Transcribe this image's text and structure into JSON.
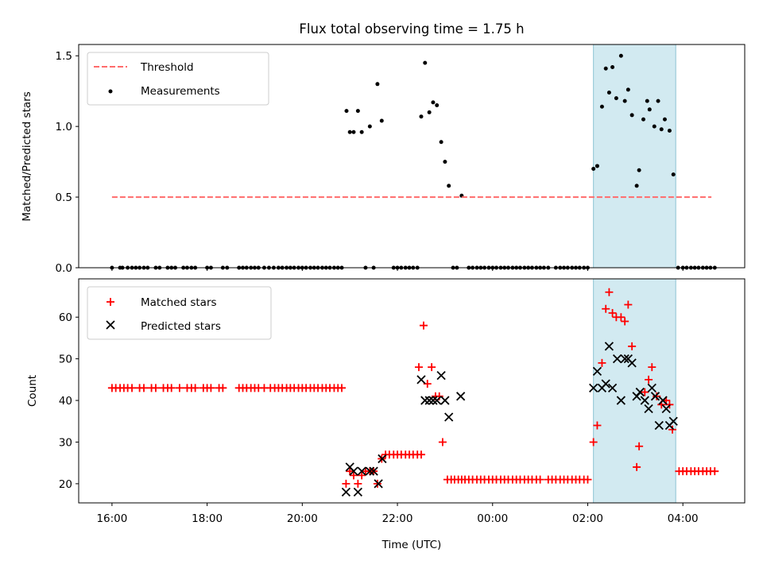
{
  "chart_data": {
    "title": "Flux total observing time = 1.75 h",
    "xlabel": "Time (UTC)",
    "x_units": "hours since 16:00",
    "xlim": [
      -0.7,
      13.3
    ],
    "xticks": [
      {
        "value": 0,
        "label": "16:00"
      },
      {
        "value": 2,
        "label": "18:00"
      },
      {
        "value": 4,
        "label": "20:00"
      },
      {
        "value": 6,
        "label": "22:00"
      },
      {
        "value": 8,
        "label": "00:00"
      },
      {
        "value": 10,
        "label": "02:00"
      },
      {
        "value": 12,
        "label": "04:00"
      }
    ],
    "highlight_span": [
      10.12,
      11.85
    ],
    "colors": {
      "threshold": "#ff6b6b",
      "measurement": "#000000",
      "matched": "#ff0000",
      "predicted": "#000000",
      "span": "#add8e6"
    },
    "top": {
      "type": "scatter",
      "ylabel": "Matched/Predicted stars",
      "ylim": [
        0,
        1.58
      ],
      "yticks": [
        {
          "value": 0,
          "label": "0.0"
        },
        {
          "value": 0.5,
          "label": "0.5"
        },
        {
          "value": 1.0,
          "label": "1.0"
        },
        {
          "value": 1.5,
          "label": "1.5"
        }
      ],
      "legend": [
        "Threshold",
        "Measurements"
      ],
      "threshold": {
        "x": [
          0,
          12.6
        ],
        "y": 0.5
      },
      "measurements": [
        [
          0,
          0
        ],
        [
          0.17,
          0
        ],
        [
          0.22,
          0
        ],
        [
          0.33,
          0
        ],
        [
          0.42,
          0
        ],
        [
          0.5,
          0
        ],
        [
          0.58,
          0
        ],
        [
          0.67,
          0
        ],
        [
          0.75,
          0
        ],
        [
          0.92,
          0
        ],
        [
          1.0,
          0
        ],
        [
          1.17,
          0
        ],
        [
          1.25,
          0
        ],
        [
          1.33,
          0
        ],
        [
          1.5,
          0
        ],
        [
          1.58,
          0
        ],
        [
          1.67,
          0
        ],
        [
          1.75,
          0
        ],
        [
          2.0,
          0
        ],
        [
          2.08,
          0
        ],
        [
          2.33,
          0
        ],
        [
          2.42,
          0
        ],
        [
          2.67,
          0
        ],
        [
          2.75,
          0
        ],
        [
          2.83,
          0
        ],
        [
          2.92,
          0
        ],
        [
          3.0,
          0
        ],
        [
          3.08,
          0
        ],
        [
          3.2,
          0
        ],
        [
          3.3,
          0
        ],
        [
          3.4,
          0
        ],
        [
          3.5,
          0
        ],
        [
          3.58,
          0
        ],
        [
          3.67,
          0
        ],
        [
          3.75,
          0
        ],
        [
          3.83,
          0
        ],
        [
          3.92,
          0
        ],
        [
          4.0,
          0
        ],
        [
          4.08,
          0
        ],
        [
          4.17,
          0
        ],
        [
          4.25,
          0
        ],
        [
          4.33,
          0
        ],
        [
          4.42,
          0
        ],
        [
          4.5,
          0
        ],
        [
          4.58,
          0
        ],
        [
          4.67,
          0
        ],
        [
          4.75,
          0
        ],
        [
          4.83,
          0
        ],
        [
          4.93,
          1.11
        ],
        [
          5.0,
          0.96
        ],
        [
          5.08,
          0.96
        ],
        [
          5.17,
          1.11
        ],
        [
          5.25,
          0.96
        ],
        [
          5.42,
          1.0
        ],
        [
          5.58,
          1.3
        ],
        [
          5.67,
          1.04
        ],
        [
          5.33,
          0
        ],
        [
          5.5,
          0
        ],
        [
          5.92,
          0
        ],
        [
          6.0,
          0
        ],
        [
          6.08,
          0
        ],
        [
          6.17,
          0
        ],
        [
          6.25,
          0
        ],
        [
          6.33,
          0
        ],
        [
          6.42,
          0
        ],
        [
          6.5,
          1.07
        ],
        [
          6.58,
          1.45
        ],
        [
          6.67,
          1.1
        ],
        [
          6.75,
          1.17
        ],
        [
          6.83,
          1.15
        ],
        [
          6.92,
          0.89
        ],
        [
          7.0,
          0.75
        ],
        [
          7.08,
          0.58
        ],
        [
          7.35,
          0.51
        ],
        [
          7.17,
          0
        ],
        [
          7.25,
          0
        ],
        [
          7.5,
          0
        ],
        [
          7.58,
          0
        ],
        [
          7.67,
          0
        ],
        [
          7.75,
          0
        ],
        [
          7.83,
          0
        ],
        [
          7.92,
          0
        ],
        [
          8.0,
          0
        ],
        [
          8.08,
          0
        ],
        [
          8.17,
          0
        ],
        [
          8.25,
          0
        ],
        [
          8.33,
          0
        ],
        [
          8.42,
          0
        ],
        [
          8.5,
          0
        ],
        [
          8.58,
          0
        ],
        [
          8.67,
          0
        ],
        [
          8.75,
          0
        ],
        [
          8.83,
          0
        ],
        [
          8.92,
          0
        ],
        [
          9.0,
          0
        ],
        [
          9.08,
          0
        ],
        [
          9.17,
          0
        ],
        [
          9.33,
          0
        ],
        [
          9.42,
          0
        ],
        [
          9.5,
          0
        ],
        [
          9.58,
          0
        ],
        [
          9.67,
          0
        ],
        [
          9.75,
          0
        ],
        [
          9.83,
          0
        ],
        [
          9.92,
          0
        ],
        [
          10.0,
          0
        ],
        [
          10.12,
          0.7
        ],
        [
          10.2,
          0.72
        ],
        [
          10.3,
          1.14
        ],
        [
          10.38,
          1.41
        ],
        [
          10.45,
          1.24
        ],
        [
          10.52,
          1.42
        ],
        [
          10.6,
          1.2
        ],
        [
          10.7,
          1.5
        ],
        [
          10.78,
          1.18
        ],
        [
          10.85,
          1.26
        ],
        [
          10.93,
          1.08
        ],
        [
          11.03,
          0.58
        ],
        [
          11.08,
          0.69
        ],
        [
          11.17,
          1.05
        ],
        [
          11.25,
          1.18
        ],
        [
          11.3,
          1.12
        ],
        [
          11.4,
          1.0
        ],
        [
          11.48,
          1.18
        ],
        [
          11.55,
          0.98
        ],
        [
          11.62,
          1.05
        ],
        [
          11.72,
          0.97
        ],
        [
          11.8,
          0.66
        ],
        [
          11.9,
          0
        ],
        [
          12.0,
          0
        ],
        [
          12.08,
          0
        ],
        [
          12.17,
          0
        ],
        [
          12.25,
          0
        ],
        [
          12.33,
          0
        ],
        [
          12.42,
          0
        ],
        [
          12.5,
          0
        ],
        [
          12.58,
          0
        ],
        [
          12.67,
          0
        ]
      ]
    },
    "bottom": {
      "type": "scatter",
      "ylabel": "Count",
      "ylim": [
        15.4,
        69.2
      ],
      "yticks": [
        {
          "value": 20,
          "label": "20"
        },
        {
          "value": 30,
          "label": "30"
        },
        {
          "value": 40,
          "label": "40"
        },
        {
          "value": 50,
          "label": "50"
        },
        {
          "value": 60,
          "label": "60"
        }
      ],
      "legend": [
        "Matched stars",
        "Predicted stars"
      ],
      "matched": [
        [
          0,
          43
        ],
        [
          0.08,
          43
        ],
        [
          0.17,
          43
        ],
        [
          0.25,
          43
        ],
        [
          0.33,
          43
        ],
        [
          0.42,
          43
        ],
        [
          0.58,
          43
        ],
        [
          0.67,
          43
        ],
        [
          0.83,
          43
        ],
        [
          0.92,
          43
        ],
        [
          1.08,
          43
        ],
        [
          1.17,
          43
        ],
        [
          1.25,
          43
        ],
        [
          1.42,
          43
        ],
        [
          1.58,
          43
        ],
        [
          1.67,
          43
        ],
        [
          1.75,
          43
        ],
        [
          1.92,
          43
        ],
        [
          2.0,
          43
        ],
        [
          2.08,
          43
        ],
        [
          2.25,
          43
        ],
        [
          2.33,
          43
        ],
        [
          2.67,
          43
        ],
        [
          2.75,
          43
        ],
        [
          2.83,
          43
        ],
        [
          2.92,
          43
        ],
        [
          3.0,
          43
        ],
        [
          3.08,
          43
        ],
        [
          3.2,
          43
        ],
        [
          3.33,
          43
        ],
        [
          3.42,
          43
        ],
        [
          3.5,
          43
        ],
        [
          3.58,
          43
        ],
        [
          3.67,
          43
        ],
        [
          3.75,
          43
        ],
        [
          3.83,
          43
        ],
        [
          3.92,
          43
        ],
        [
          4.0,
          43
        ],
        [
          4.08,
          43
        ],
        [
          4.17,
          43
        ],
        [
          4.25,
          43
        ],
        [
          4.33,
          43
        ],
        [
          4.42,
          43
        ],
        [
          4.5,
          43
        ],
        [
          4.58,
          43
        ],
        [
          4.67,
          43
        ],
        [
          4.75,
          43
        ],
        [
          4.83,
          43
        ],
        [
          4.92,
          20
        ],
        [
          5.0,
          23
        ],
        [
          5.08,
          22
        ],
        [
          5.17,
          20
        ],
        [
          5.25,
          22
        ],
        [
          5.33,
          23
        ],
        [
          5.42,
          23
        ],
        [
          5.5,
          23
        ],
        [
          5.58,
          20
        ],
        [
          5.67,
          26
        ],
        [
          5.75,
          27
        ],
        [
          5.83,
          27
        ],
        [
          5.92,
          27
        ],
        [
          6.0,
          27
        ],
        [
          6.08,
          27
        ],
        [
          6.17,
          27
        ],
        [
          6.25,
          27
        ],
        [
          6.33,
          27
        ],
        [
          6.42,
          27
        ],
        [
          6.5,
          27
        ],
        [
          6.45,
          48
        ],
        [
          6.55,
          58
        ],
        [
          6.63,
          44
        ],
        [
          6.72,
          48
        ],
        [
          6.8,
          41
        ],
        [
          6.88,
          41
        ],
        [
          6.95,
          30
        ],
        [
          7.05,
          21
        ],
        [
          7.13,
          21
        ],
        [
          7.2,
          21
        ],
        [
          7.28,
          21
        ],
        [
          7.35,
          21
        ],
        [
          7.42,
          21
        ],
        [
          7.5,
          21
        ],
        [
          7.58,
          21
        ],
        [
          7.67,
          21
        ],
        [
          7.75,
          21
        ],
        [
          7.83,
          21
        ],
        [
          7.92,
          21
        ],
        [
          8.0,
          21
        ],
        [
          8.08,
          21
        ],
        [
          8.17,
          21
        ],
        [
          8.25,
          21
        ],
        [
          8.33,
          21
        ],
        [
          8.42,
          21
        ],
        [
          8.5,
          21
        ],
        [
          8.58,
          21
        ],
        [
          8.67,
          21
        ],
        [
          8.75,
          21
        ],
        [
          8.83,
          21
        ],
        [
          8.92,
          21
        ],
        [
          9.0,
          21
        ],
        [
          9.17,
          21
        ],
        [
          9.25,
          21
        ],
        [
          9.33,
          21
        ],
        [
          9.42,
          21
        ],
        [
          9.5,
          21
        ],
        [
          9.58,
          21
        ],
        [
          9.67,
          21
        ],
        [
          9.75,
          21
        ],
        [
          9.83,
          21
        ],
        [
          9.92,
          21
        ],
        [
          10.0,
          21
        ],
        [
          10.12,
          30
        ],
        [
          10.2,
          34
        ],
        [
          10.3,
          49
        ],
        [
          10.38,
          62
        ],
        [
          10.45,
          66
        ],
        [
          10.52,
          61
        ],
        [
          10.6,
          60
        ],
        [
          10.7,
          60
        ],
        [
          10.78,
          59
        ],
        [
          10.85,
          63
        ],
        [
          10.93,
          53
        ],
        [
          11.03,
          24
        ],
        [
          11.08,
          29
        ],
        [
          11.2,
          42
        ],
        [
          11.28,
          45
        ],
        [
          11.35,
          48
        ],
        [
          11.45,
          41
        ],
        [
          11.55,
          39
        ],
        [
          11.65,
          40
        ],
        [
          11.72,
          39
        ],
        [
          11.78,
          33
        ],
        [
          11.92,
          23
        ],
        [
          12.0,
          23
        ],
        [
          12.08,
          23
        ],
        [
          12.17,
          23
        ],
        [
          12.25,
          23
        ],
        [
          12.33,
          23
        ],
        [
          12.42,
          23
        ],
        [
          12.5,
          23
        ],
        [
          12.58,
          23
        ],
        [
          12.67,
          23
        ]
      ],
      "predicted": [
        [
          4.92,
          18
        ],
        [
          5.0,
          24
        ],
        [
          5.08,
          23
        ],
        [
          5.17,
          18
        ],
        [
          5.25,
          23
        ],
        [
          5.42,
          23
        ],
        [
          5.5,
          23
        ],
        [
          5.6,
          20
        ],
        [
          5.68,
          26
        ],
        [
          6.5,
          45
        ],
        [
          6.58,
          40
        ],
        [
          6.67,
          40
        ],
        [
          6.75,
          40
        ],
        [
          6.83,
          40
        ],
        [
          6.92,
          46
        ],
        [
          7.0,
          40
        ],
        [
          7.08,
          36
        ],
        [
          7.33,
          41
        ],
        [
          10.12,
          43
        ],
        [
          10.2,
          47
        ],
        [
          10.3,
          43
        ],
        [
          10.38,
          44
        ],
        [
          10.45,
          53
        ],
        [
          10.52,
          43
        ],
        [
          10.62,
          50
        ],
        [
          10.7,
          40
        ],
        [
          10.78,
          50
        ],
        [
          10.85,
          50
        ],
        [
          10.93,
          49
        ],
        [
          11.03,
          41
        ],
        [
          11.1,
          42
        ],
        [
          11.2,
          40
        ],
        [
          11.28,
          38
        ],
        [
          11.35,
          43
        ],
        [
          11.42,
          41
        ],
        [
          11.5,
          34
        ],
        [
          11.58,
          40
        ],
        [
          11.65,
          38
        ],
        [
          11.72,
          34
        ],
        [
          11.8,
          35
        ]
      ]
    }
  }
}
